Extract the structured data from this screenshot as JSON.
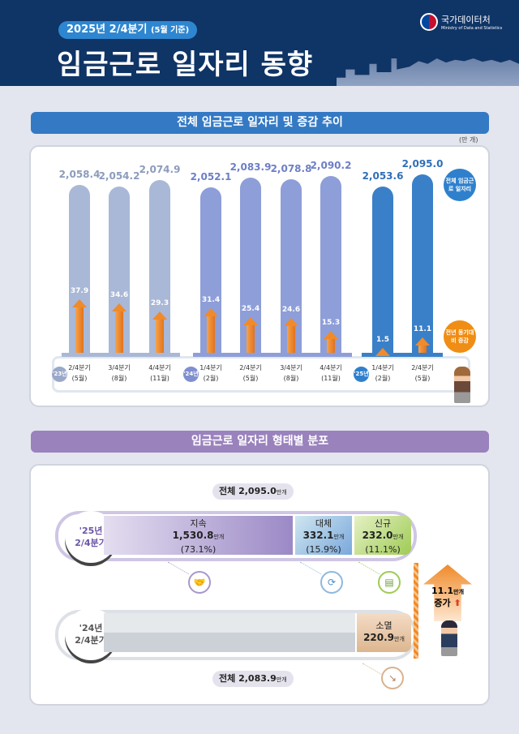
{
  "header": {
    "subtitle": "2025년 2/4분기",
    "subtitle_note": "(5월 기준)",
    "title": "임금근로 일자리 동향",
    "logo_name": "국가데이터처",
    "logo_en": "Ministry of Data and Statistics"
  },
  "section1": {
    "title": "전체 임금근로 일자리 및 증감 추이",
    "unit": "(만 개)",
    "legend_total": "전체 임금근로 일자리",
    "legend_change": "전년 동기대비 증감"
  },
  "chart_data": {
    "type": "bar",
    "title": "전체 임금근로 일자리 및 증감 추이",
    "unit": "(만 개)",
    "years": [
      {
        "label": "'23년",
        "color": "#9aa9c9"
      },
      {
        "label": "'24년",
        "color": "#7f8fcf"
      },
      {
        "label": "'25년",
        "color": "#2f80cc"
      }
    ],
    "categories": [
      "2/4분기 (5월)",
      "3/4분기 (8월)",
      "4/4분기 (11월)",
      "1/4분기 (2월)",
      "2/4분기 (5월)",
      "3/4분기 (8월)",
      "4/4분기 (11월)",
      "1/4분기 (2월)",
      "2/4분기 (5월)"
    ],
    "category_lines": [
      [
        "2/4분기",
        "(5월)"
      ],
      [
        "3/4분기",
        "(8월)"
      ],
      [
        "4/4분기",
        "(11월)"
      ],
      [
        "1/4분기",
        "(2월)"
      ],
      [
        "2/4분기",
        "(5월)"
      ],
      [
        "3/4분기",
        "(8월)"
      ],
      [
        "4/4분기",
        "(11월)"
      ],
      [
        "1/4분기",
        "(2월)"
      ],
      [
        "2/4분기",
        "(5월)"
      ]
    ],
    "year_index": [
      0,
      0,
      0,
      1,
      1,
      1,
      1,
      2,
      2
    ],
    "series": [
      {
        "name": "전체 임금근로 일자리",
        "values": [
          2058.4,
          2054.2,
          2074.9,
          2052.1,
          2083.9,
          2078.8,
          2090.2,
          2053.6,
          2095.0
        ]
      },
      {
        "name": "전년 동기대비 증감",
        "values": [
          37.9,
          34.6,
          29.3,
          31.4,
          25.4,
          24.6,
          15.3,
          1.5,
          11.1
        ]
      }
    ],
    "total_labels": [
      "2,058.4",
      "2,054.2",
      "2,074.9",
      "2,052.1",
      "2,083.9",
      "2,078.8",
      "2,090.2",
      "2,053.6",
      "2,095.0"
    ],
    "change_labels": [
      "37.9",
      "34.6",
      "29.3",
      "31.4",
      "25.4",
      "24.6",
      "15.3",
      "1.5",
      "11.1"
    ],
    "bar_colors": [
      "#a9b8d6",
      "#8e9ed8",
      "#3a80c8"
    ],
    "change_color": "#f08a2a"
  },
  "section2": {
    "title": "임금근로 일자리 형태별 분포",
    "total_2025": {
      "label": "전체",
      "value": "2,095.0",
      "unit": "만개"
    },
    "total_2024": {
      "label": "전체",
      "value": "2,083.9",
      "unit": "만개"
    },
    "row2025": {
      "label1": "'25년",
      "label2": "2/4분기",
      "segments": [
        {
          "name": "지속",
          "value": "1,530.8",
          "unit": "만개",
          "pct": "(73.1%)",
          "share": 73.1,
          "color": "#a898cc"
        },
        {
          "name": "대체",
          "value": "332.1",
          "unit": "만개",
          "pct": "(15.9%)",
          "share": 15.9,
          "color": "#8fb8de"
        },
        {
          "name": "신규",
          "value": "232.0",
          "unit": "만개",
          "pct": "(11.1%)",
          "share": 11.1,
          "color": "#b5d77a"
        }
      ]
    },
    "row2024": {
      "label1": "'24년",
      "label2": "2/4분기",
      "segment": {
        "name": "소멸",
        "value": "220.9",
        "unit": "만개",
        "color": "#e6c4a4"
      }
    },
    "increase": {
      "value": "11.1",
      "unit": "만개",
      "label": "증가"
    }
  }
}
